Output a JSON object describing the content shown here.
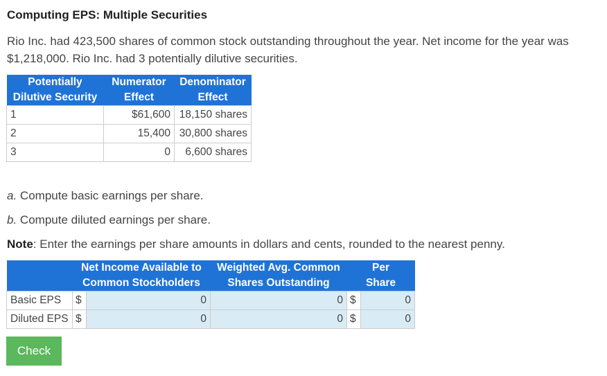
{
  "header": {
    "title": "Computing EPS: Multiple Securities"
  },
  "intro": "Rio Inc. had 423,500 shares of common stock outstanding throughout the year. Net income for the year was $1,218,000. Rio Inc. had 3 potentially dilutive securities.",
  "securities_table": {
    "columns": [
      "Potentially\nDilutive Security",
      "Numerator\nEffect",
      "Denominator\nEffect"
    ],
    "rows": [
      [
        "1",
        "$61,600",
        "18,150 shares"
      ],
      [
        "2",
        "15,400",
        "30,800 shares"
      ],
      [
        "3",
        "0",
        "6,600 shares"
      ]
    ]
  },
  "questions": [
    {
      "letter": "a.",
      "text": "Compute basic earnings per share."
    },
    {
      "letter": "b.",
      "text": "Compute diluted earnings per share."
    }
  ],
  "note": {
    "label": "Note",
    "text": ": Enter the earnings per share amounts in dollars and cents, rounded to the nearest penny."
  },
  "answer_table": {
    "columns": [
      "Net Income Available to\nCommon Stockholders",
      "Weighted Avg. Common\nShares Outstanding",
      "Per\nShare"
    ],
    "rows": [
      {
        "label": "Basic EPS",
        "currency": "$",
        "net_income": 0,
        "shares": 0,
        "per_share_currency": "$",
        "per_share": 0
      },
      {
        "label": "Diluted EPS",
        "currency": "$",
        "net_income": 0,
        "shares": 0,
        "per_share_currency": "$",
        "per_share": 0
      }
    ]
  },
  "button": "Check"
}
